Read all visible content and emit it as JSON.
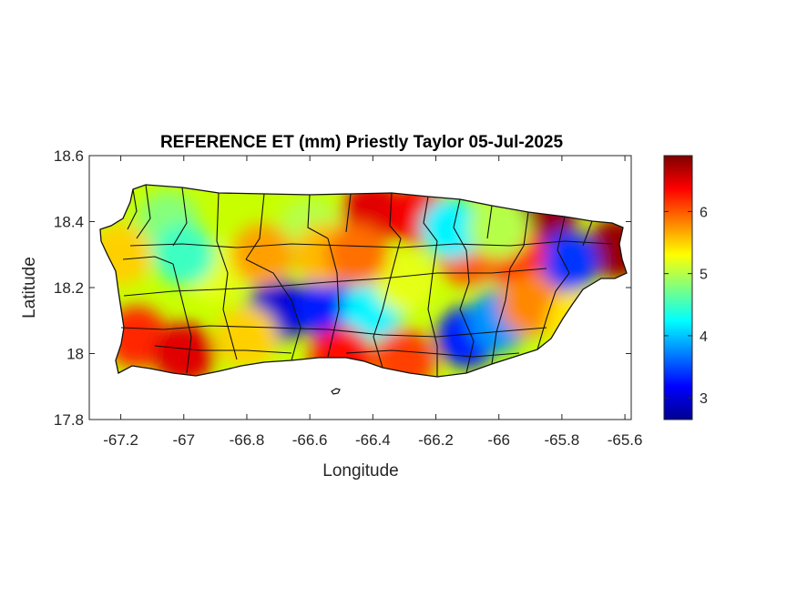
{
  "chart_data": {
    "type": "heatmap",
    "title": "REFERENCE ET (mm) Priestly Taylor 05-Jul-2025",
    "xlabel": "Longitude",
    "ylabel": "Latitude",
    "xlim": [
      -67.3,
      -65.58
    ],
    "ylim": [
      17.8,
      18.6
    ],
    "x_ticks": [
      -67.2,
      -67,
      -66.8,
      -66.6,
      -66.4,
      -66.2,
      -66,
      -65.8,
      -65.6
    ],
    "x_tick_labels": [
      "-67.2",
      "-67",
      "-66.8",
      "-66.6",
      "-66.4",
      "-66.2",
      "-66",
      "-65.8",
      "-65.6"
    ],
    "y_ticks": [
      17.8,
      18,
      18.2,
      18.4,
      18.6
    ],
    "y_tick_labels": [
      "17.8",
      "18",
      "18.2",
      "18.4",
      "18.6"
    ],
    "colorbar": {
      "colormap": "jet",
      "range": [
        2.65,
        6.9
      ],
      "ticks": [
        3,
        4,
        5,
        6
      ],
      "tick_labels": [
        "3",
        "4",
        "5",
        "6"
      ]
    },
    "grid": false,
    "field_samples": [
      {
        "lon": -66.4,
        "lat": 18.43,
        "value": 6.5
      },
      {
        "lon": -66.25,
        "lat": 18.42,
        "value": 6.4
      },
      {
        "lon": -65.85,
        "lat": 18.42,
        "value": 6.8
      },
      {
        "lon": -65.62,
        "lat": 18.32,
        "value": 6.8
      },
      {
        "lon": -65.78,
        "lat": 18.28,
        "value": 3.4
      },
      {
        "lon": -65.95,
        "lat": 18.3,
        "value": 6.2
      },
      {
        "lon": -66.1,
        "lat": 18.3,
        "value": 6.0
      },
      {
        "lon": -66.7,
        "lat": 18.13,
        "value": 3.0
      },
      {
        "lon": -66.55,
        "lat": 18.14,
        "value": 3.3
      },
      {
        "lon": -66.4,
        "lat": 18.13,
        "value": 4.2
      },
      {
        "lon": -66.1,
        "lat": 18.05,
        "value": 3.3
      },
      {
        "lon": -66.0,
        "lat": 18.1,
        "value": 3.8
      },
      {
        "lon": -66.9,
        "lat": 18.25,
        "value": 5.2
      },
      {
        "lon": -67.05,
        "lat": 18.4,
        "value": 4.8
      },
      {
        "lon": -67.0,
        "lat": 18.3,
        "value": 4.5
      },
      {
        "lon": -67.15,
        "lat": 18.05,
        "value": 6.2
      },
      {
        "lon": -67.0,
        "lat": 18.0,
        "value": 6.5
      },
      {
        "lon": -66.5,
        "lat": 17.99,
        "value": 6.3
      },
      {
        "lon": -66.3,
        "lat": 17.98,
        "value": 6.1
      },
      {
        "lon": -66.8,
        "lat": 18.05,
        "value": 5.5
      },
      {
        "lon": -66.6,
        "lat": 18.38,
        "value": 5.0
      },
      {
        "lon": -66.75,
        "lat": 18.3,
        "value": 5.7
      },
      {
        "lon": -66.55,
        "lat": 18.3,
        "value": 5.6
      },
      {
        "lon": -66.3,
        "lat": 18.22,
        "value": 5.2
      },
      {
        "lon": -65.9,
        "lat": 18.15,
        "value": 5.8
      },
      {
        "lon": -65.75,
        "lat": 18.1,
        "value": 5.4
      },
      {
        "lon": -66.15,
        "lat": 18.38,
        "value": 4.2
      },
      {
        "lon": -67.2,
        "lat": 18.3,
        "value": 5.5
      },
      {
        "lon": -66.0,
        "lat": 18.38,
        "value": 5.0
      },
      {
        "lon": -66.45,
        "lat": 18.3,
        "value": 5.9
      }
    ]
  }
}
